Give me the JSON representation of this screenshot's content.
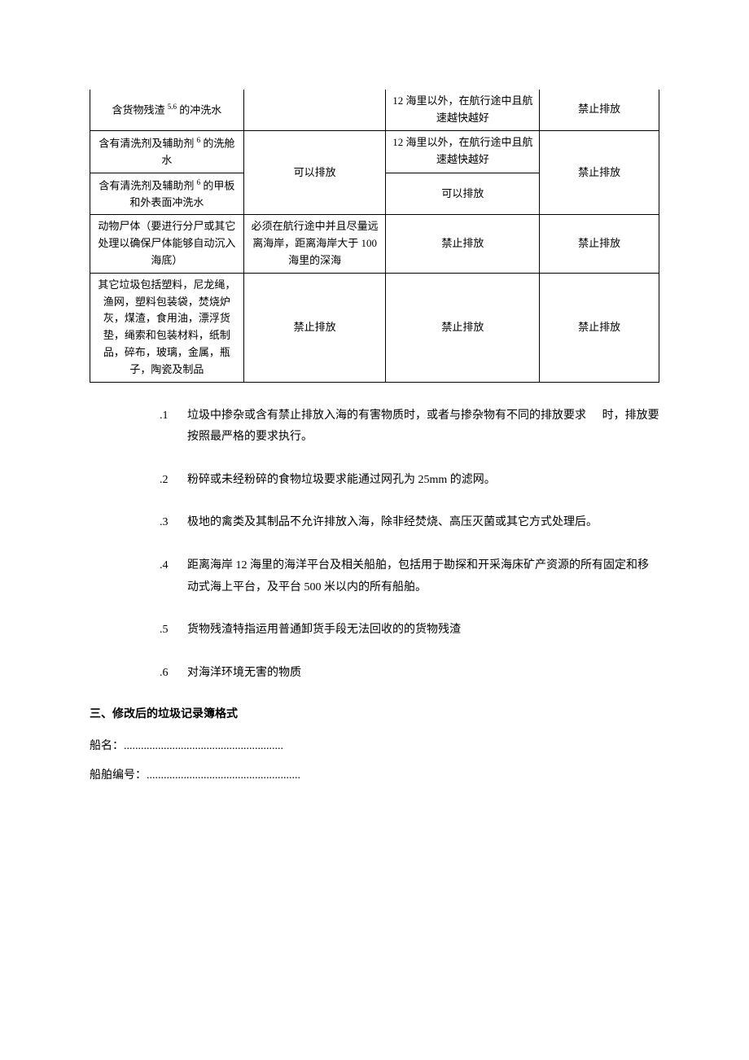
{
  "table": {
    "rows": [
      {
        "c0": "含货物残渣 ⁵·⁶ 的冲洗水",
        "c2": "12 海里以外，在航行途中且航速越快越好",
        "c3": "禁止排放"
      },
      {
        "c0": "含有清洗剂及辅助剂 ⁶ 的洗舱水",
        "c1": "可以排放",
        "c2": "12 海里以外，在航行途中且航速越快越好",
        "c3": "禁止排放"
      },
      {
        "c0": "含有清洗剂及辅助剂 ⁶ 的甲板和外表面冲洗水",
        "c2": "可以排放"
      },
      {
        "c0": "动物尸体（要进行分尸或其它处理以确保尸体能够自动沉入海底）",
        "c1": "必须在航行途中并且尽量远离海岸，距离海岸大于 100 海里的深海",
        "c2": "禁止排放",
        "c3": "禁止排放"
      },
      {
        "c0": "其它垃圾包括塑料，尼龙绳，渔网，塑料包装袋，焚烧炉灰，煤渣，食用油，漂浮货垫，绳索和包装材料，纸制品，碎布，玻璃，金属，瓶子，陶瓷及制品",
        "c1": "禁止排放",
        "c2": "禁止排放",
        "c3": "禁止排放"
      }
    ]
  },
  "notes": [
    {
      "n": ".1",
      "t_a": "垃圾中掺杂或含有禁止排放入海的有害物质时，或者与掺杂物有不同的排放要求",
      "t_b": "时，排放要按照最严格的要求执行。"
    },
    {
      "n": ".2",
      "t": "粉碎或未经粉碎的食物垃圾要求能通过网孔为 25mm 的滤网。"
    },
    {
      "n": ".3",
      "t": "极地的禽类及其制品不允许排放入海，除非经焚烧、高压灭菌或其它方式处理后。"
    },
    {
      "n": ".4",
      "t": "距离海岸 12 海里的海洋平台及相关船舶，包括用于勘探和开采海床矿产资源的所有固定和移动式海上平台，及平台 500 米以内的所有船舶。"
    },
    {
      "n": ".5",
      "t": "货物残渣特指运用普通卸货手段无法回收的的货物残渣"
    },
    {
      "n": ".6",
      "t": "对海洋环境无害的物质"
    }
  ],
  "section3_title": "三、修改后的垃圾记录簿格式",
  "fields": {
    "ship_name_label": "船名：",
    "ship_no_label": "船舶编号：",
    "dots1": "........................................................",
    "dots2": "......................................................"
  }
}
